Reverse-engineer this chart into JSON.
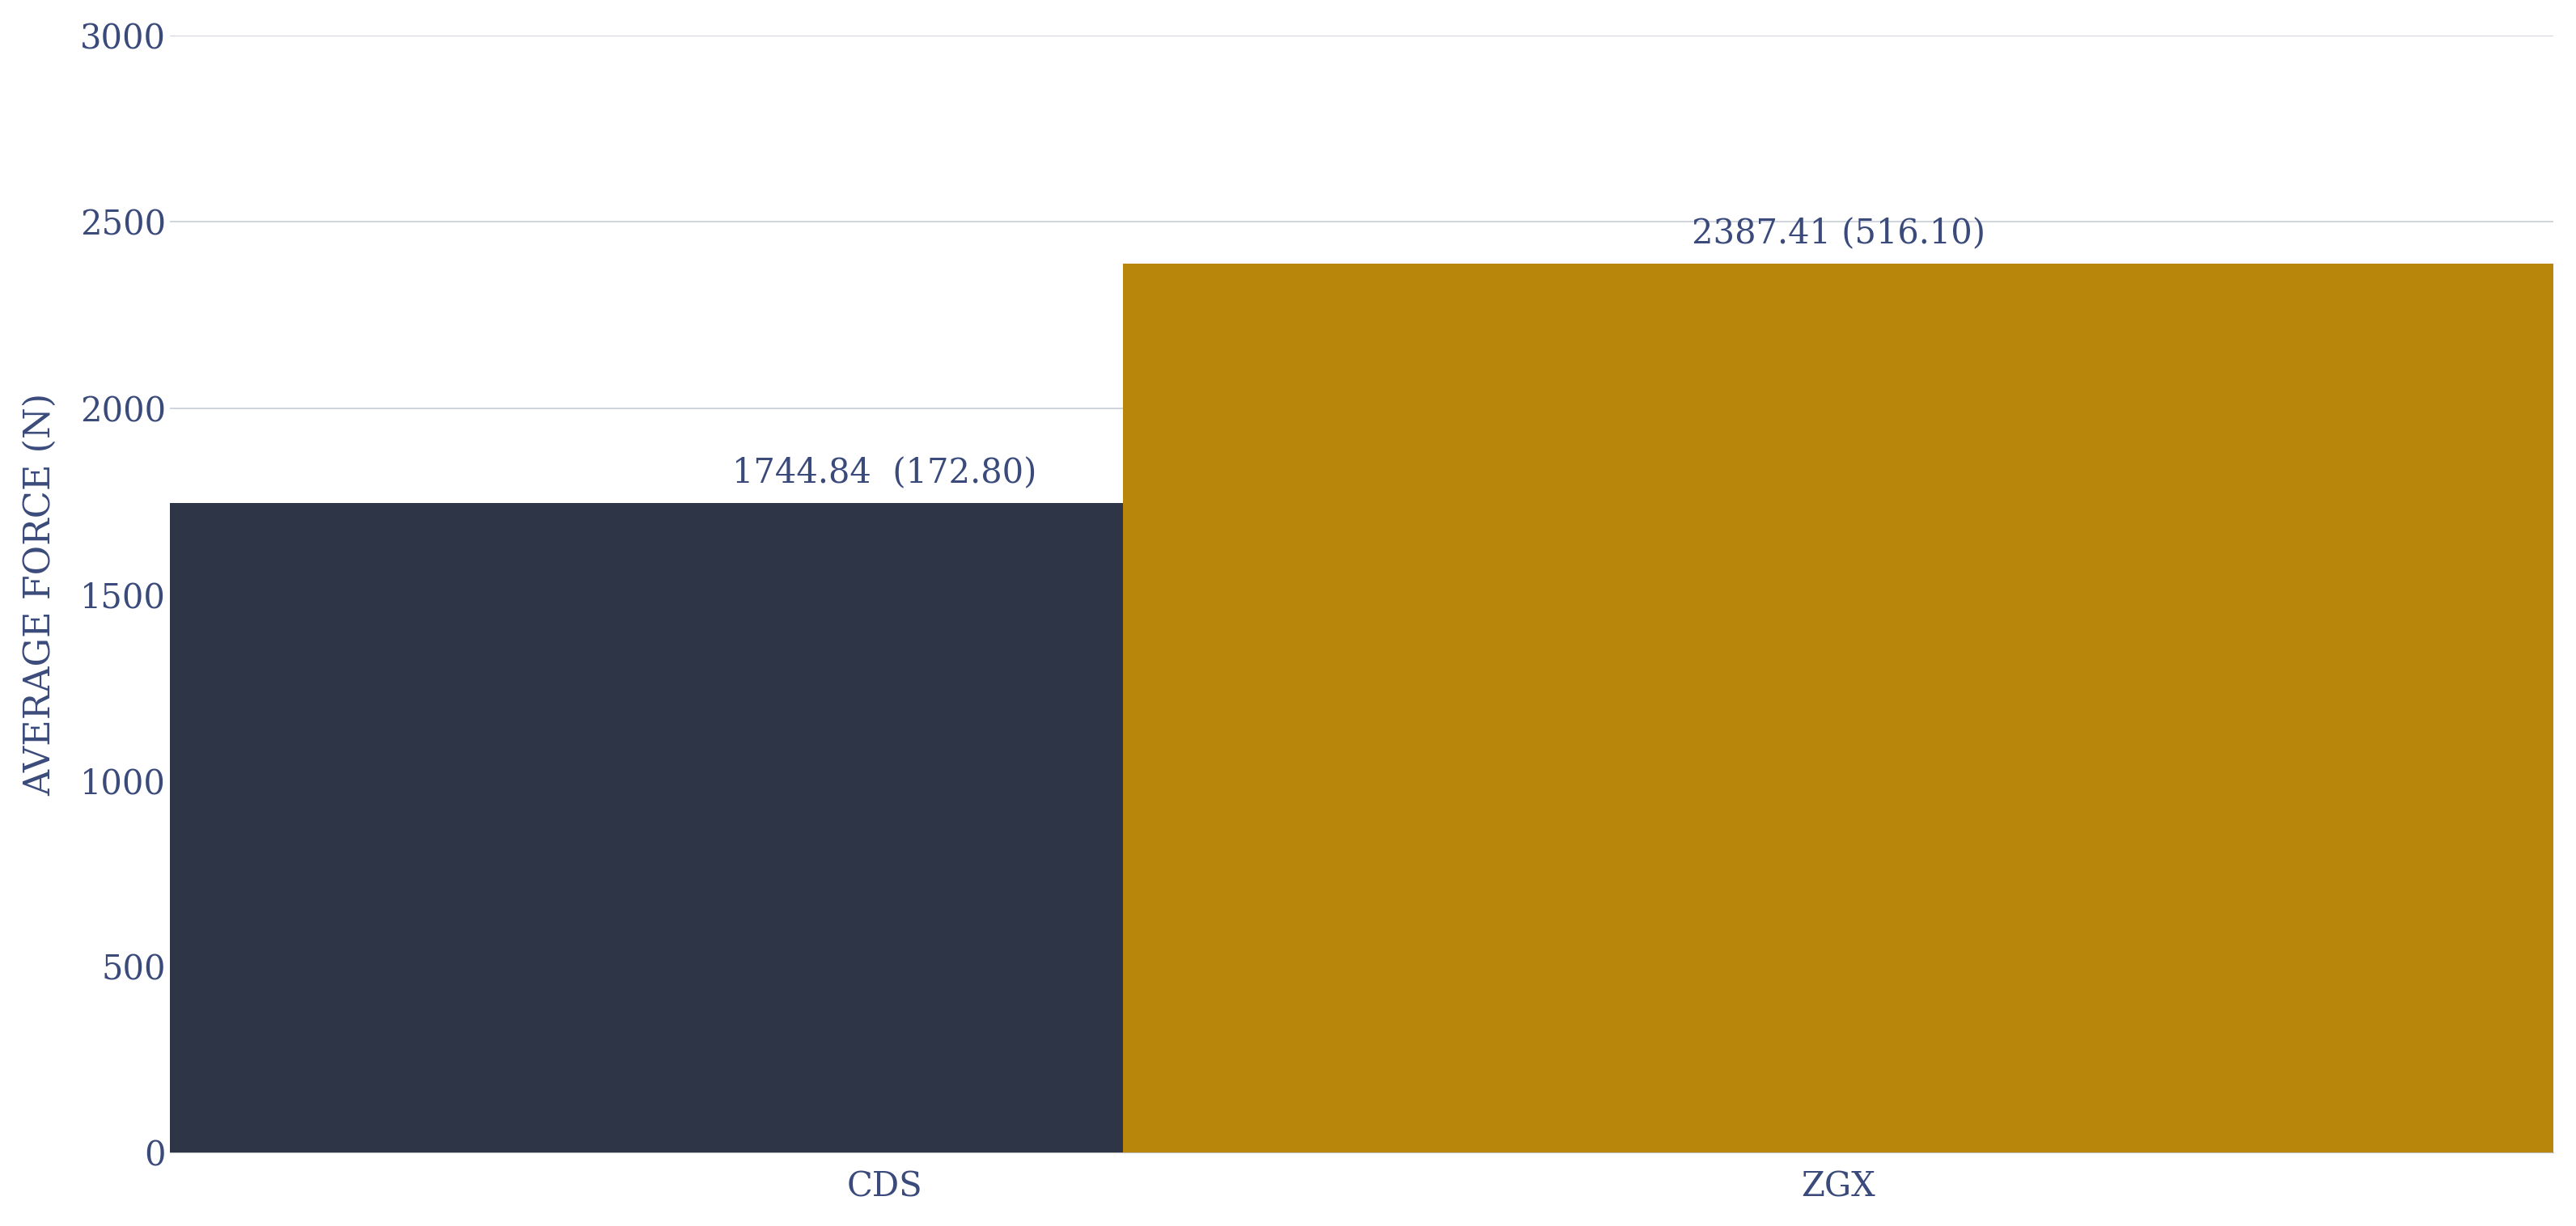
{
  "categories": [
    "CDS",
    "ZGX"
  ],
  "values": [
    1744.84,
    2387.41
  ],
  "bar_colors": [
    "#2E3547",
    "#B8860B"
  ],
  "bar_labels": [
    "1744.84  (172.80)",
    "2387.41 (516.10)"
  ],
  "ylabel": "AVERAGE FORCE (N)",
  "ylim": [
    0,
    3000
  ],
  "yticks": [
    0,
    500,
    1000,
    1500,
    2000,
    2500,
    3000
  ],
  "background_color": "#FFFFFF",
  "grid_color": "#C8CDD8",
  "text_color": "#3A4A7A",
  "label_fontsize": 32,
  "tick_fontsize": 30,
  "annotation_fontsize": 30,
  "bar_width": 0.6,
  "bar_positions": [
    0.3,
    0.7
  ]
}
